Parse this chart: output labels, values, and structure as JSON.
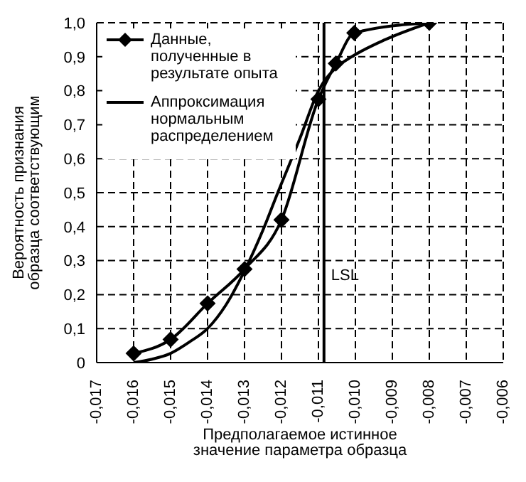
{
  "chart_data": {
    "type": "line",
    "xlabel": "Предполагаемое истинное значение параметра образца",
    "ylabel": "Вероятность признания образца соответствующим",
    "series": [
      {
        "name": "Данные, полученные в результате опыта",
        "color": "#000000",
        "marker": "diamond",
        "x": [
          -0.016,
          -0.015,
          -0.014,
          -0.013,
          -0.012,
          -0.011,
          -0.01053,
          -0.01003,
          -0.008
        ],
        "values": [
          0.027,
          0.068,
          0.174,
          0.275,
          0.42,
          0.775,
          0.88,
          0.97,
          1.0
        ]
      },
      {
        "name": "Аппроксимация нормальным распределением",
        "color": "#000000",
        "marker": "none",
        "x": [
          -0.016,
          -0.0155,
          -0.015,
          -0.0145,
          -0.014,
          -0.0135,
          -0.013,
          -0.0125,
          -0.0121,
          -0.0115,
          -0.011,
          -0.0105,
          -0.0101,
          -0.0092,
          -0.008
        ],
        "values": [
          0.0,
          0.01,
          0.027,
          0.06,
          0.1,
          0.17,
          0.27,
          0.39,
          0.5,
          0.66,
          0.8,
          0.87,
          0.9,
          0.95,
          1.0
        ]
      }
    ],
    "xlim": [
      -0.017,
      -0.006
    ],
    "xticks": [
      {
        "value": -0.017,
        "label": "-0,017"
      },
      {
        "value": -0.016,
        "label": "-0,016"
      },
      {
        "value": -0.015,
        "label": "-0,015"
      },
      {
        "value": -0.014,
        "label": "-0,014"
      },
      {
        "value": -0.013,
        "label": "-0,013"
      },
      {
        "value": -0.012,
        "label": "-0,012"
      },
      {
        "value": -0.011,
        "label": "-0,011"
      },
      {
        "value": -0.01,
        "label": "-0,010"
      },
      {
        "value": -0.009,
        "label": "-0,009"
      },
      {
        "value": -0.008,
        "label": "-0,008"
      },
      {
        "value": -0.007,
        "label": "-0,007"
      },
      {
        "value": -0.006,
        "label": "-0,006"
      }
    ],
    "ylim": [
      0,
      1
    ],
    "yticks": [
      0,
      {
        "value": 0.1,
        "label": "0,1"
      },
      {
        "value": 0.2,
        "label": "0,2"
      },
      {
        "value": 0.3,
        "label": "0,3"
      },
      {
        "value": 0.4,
        "label": "0,4"
      },
      {
        "value": 0.5,
        "label": "0,5"
      },
      {
        "value": 0.6,
        "label": "0,6"
      },
      {
        "value": 0.7,
        "label": "0,7"
      },
      {
        "value": 0.8,
        "label": "0,8"
      },
      {
        "value": 0.9,
        "label": "0,9"
      },
      {
        "value": 1,
        "label": "1,0"
      }
    ],
    "ref_lines": [
      {
        "axis": "x",
        "value": -0.01085,
        "label": "LSL",
        "color": "#000000"
      }
    ],
    "grid": true,
    "line_style": "solid",
    "legend": "top left"
  }
}
